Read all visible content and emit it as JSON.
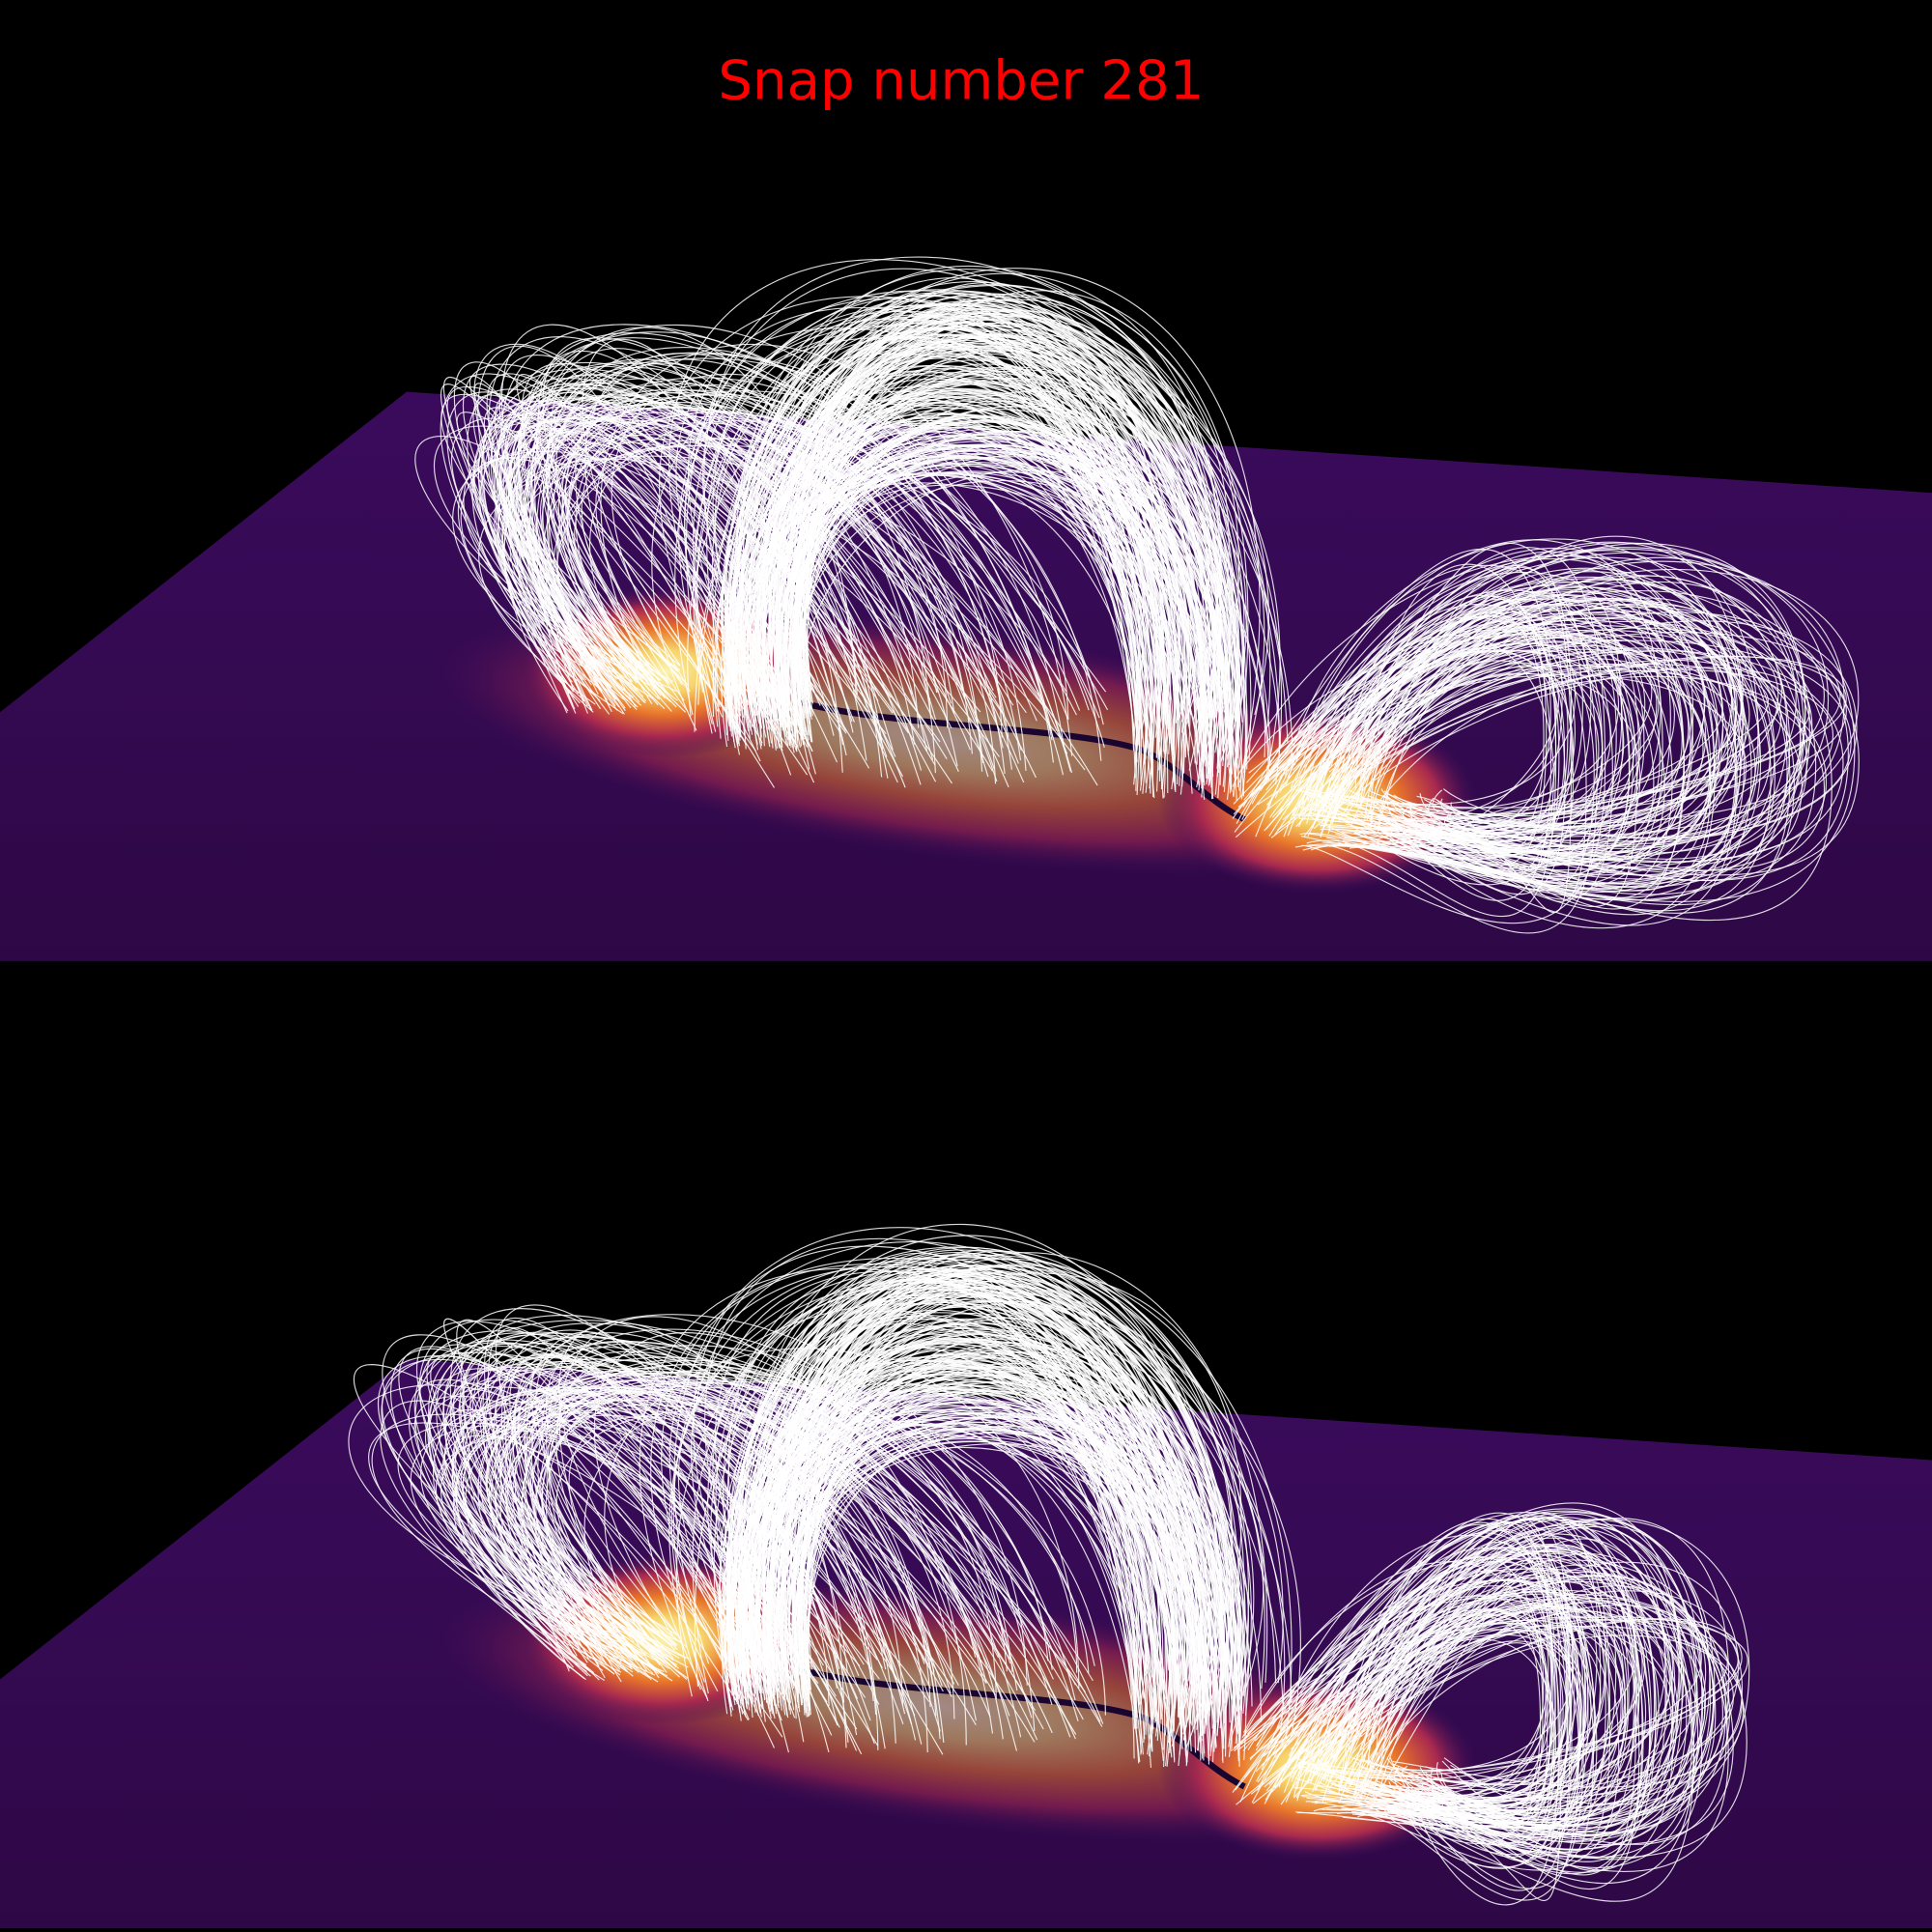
{
  "title": "Snap number 281"
}
